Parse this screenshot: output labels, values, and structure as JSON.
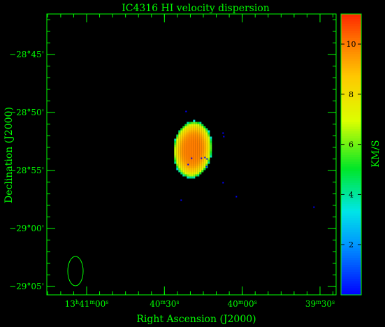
{
  "chart_data": {
    "type": "heatmap",
    "title": "IC4316   HI velocity dispersion",
    "xlabel": "Right Ascension (J2000)",
    "ylabel": "Declination (J2000)",
    "x_ticks": [
      {
        "h": "13",
        "hs": "h",
        "m": "41",
        "ms": "m",
        "s": "00",
        "ss": "s",
        "sec": 49260
      },
      {
        "h": "",
        "hs": "",
        "m": "40",
        "ms": "m",
        "s": "30",
        "ss": "s",
        "sec": 49230
      },
      {
        "h": "",
        "hs": "",
        "m": "40",
        "ms": "m",
        "s": "00",
        "ss": "s",
        "sec": 49200
      },
      {
        "h": "",
        "hs": "",
        "m": "39",
        "ms": "m",
        "s": "30",
        "ss": "s",
        "sec": 49170
      }
    ],
    "y_ticks": [
      {
        "label": "−28°45'",
        "deg": -28.75
      },
      {
        "label": "−28°50'",
        "deg": -28.8333
      },
      {
        "label": "−28°55'",
        "deg": -28.9167
      },
      {
        "label": "−29°00'",
        "deg": -29.0
      },
      {
        "label": "−29°05'",
        "deg": -29.0833
      }
    ],
    "colorbar": {
      "label": "KM/S",
      "range": [
        0,
        11.2
      ],
      "ticks": [
        "2",
        "4",
        "6",
        "8",
        "10"
      ],
      "tick_values": [
        2,
        4,
        6,
        8,
        10
      ]
    },
    "source": {
      "ra_center_sec": 49219.5,
      "dec_center_deg": -28.885,
      "dispersion_peak_kms": 10.0,
      "dispersion_edge_kms": 5.0
    },
    "beam": "ellipse"
  }
}
